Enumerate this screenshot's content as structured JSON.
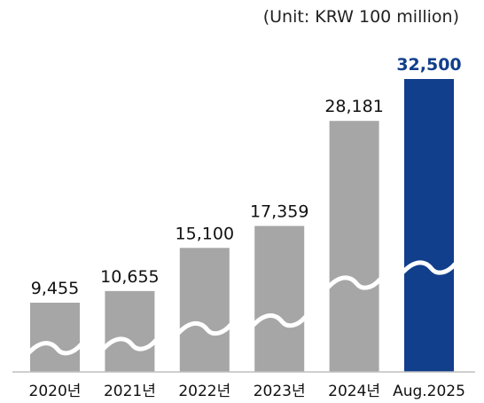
{
  "chart_data": {
    "type": "bar",
    "unit_label": "(Unit: KRW 100 million)",
    "categories": [
      "2020년",
      "2021년",
      "2022년",
      "2023년",
      "2024년",
      "Aug.2025"
    ],
    "values": [
      9455,
      10655,
      15100,
      17359,
      28181,
      32500
    ],
    "value_labels": [
      "9,455",
      "10,655",
      "15,100",
      "17,359",
      "28,181",
      "32,500"
    ],
    "highlight_index": 5,
    "axis_break": true,
    "colors": {
      "bar": "#a6a6a6",
      "highlight": "#123f8c",
      "highlight_label": "#123f8c",
      "break_line": "#ffffff",
      "baseline": "#bfbfbf"
    }
  }
}
